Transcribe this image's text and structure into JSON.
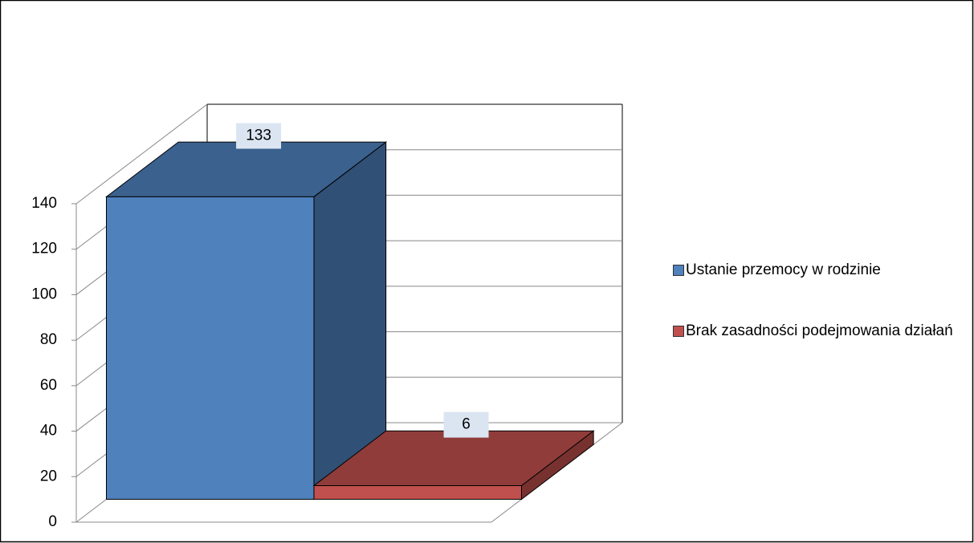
{
  "chart_data": {
    "type": "bar3d",
    "series": [
      {
        "name": "Ustanie przemocy w rodzinie",
        "color": "#4f81bd",
        "values": [
          133
        ]
      },
      {
        "name": "Brak zasadności podejmowania działań",
        "color": "#c0504d",
        "values": [
          6
        ]
      }
    ],
    "ylim": [
      0,
      140
    ],
    "yticks": [
      0,
      20,
      40,
      60,
      80,
      100,
      120,
      140
    ],
    "grid": true,
    "legend": "right"
  }
}
